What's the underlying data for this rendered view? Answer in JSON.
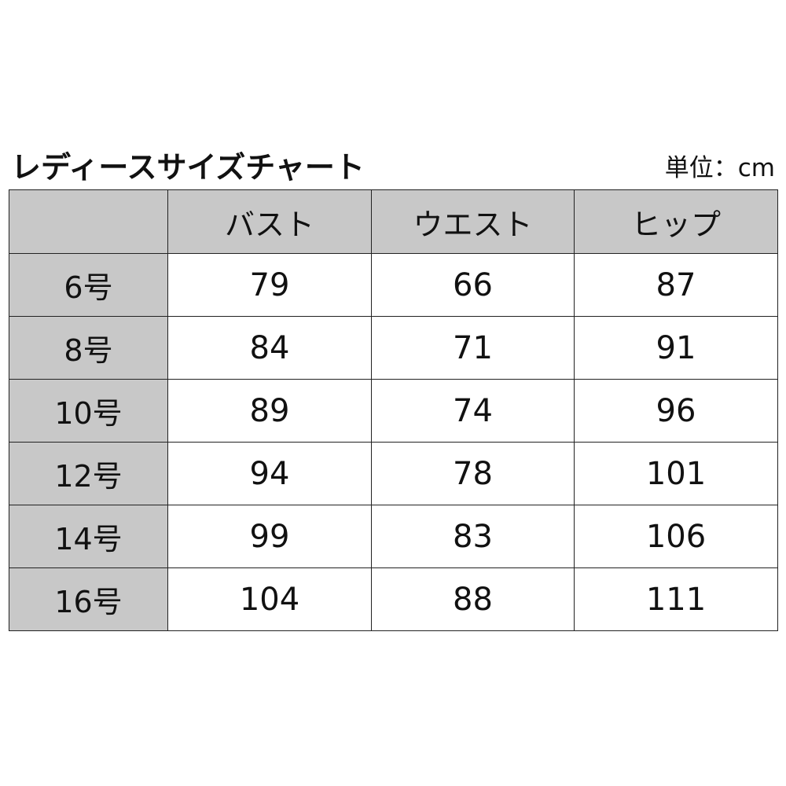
{
  "title": "レディースサイズチャート",
  "unit": "単位：cm",
  "table": {
    "headers": [
      "",
      "バスト",
      "ウエスト",
      "ヒップ"
    ],
    "rows": [
      {
        "size": "6号",
        "bust": "79",
        "waist": "66",
        "hip": "87"
      },
      {
        "size": "8号",
        "bust": "84",
        "waist": "71",
        "hip": "91"
      },
      {
        "size": "10号",
        "bust": "89",
        "waist": "74",
        "hip": "96"
      },
      {
        "size": "12号",
        "bust": "94",
        "waist": "78",
        "hip": "101"
      },
      {
        "size": "14号",
        "bust": "99",
        "waist": "83",
        "hip": "106"
      },
      {
        "size": "16号",
        "bust": "104",
        "waist": "88",
        "hip": "111"
      }
    ]
  },
  "colors": {
    "header_bg": "#c8c8c8",
    "border": "#222222"
  }
}
